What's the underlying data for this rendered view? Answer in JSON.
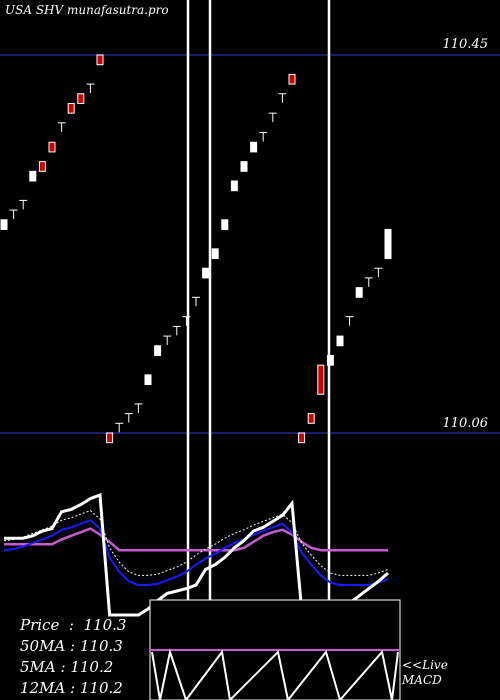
{
  "header": "USA SHV munafasutra.pro",
  "levels": {
    "upper": "110.45",
    "lower": "110.06"
  },
  "stats": [
    {
      "label": "Price",
      "value": "110.3"
    },
    {
      "label": "50MA",
      "value": "110.3"
    },
    {
      "label": "5MA",
      "value": "110.2"
    },
    {
      "label": "12MA",
      "value": "110.2"
    }
  ],
  "macd_labels": [
    "<<Live",
    "MACD"
  ],
  "colors": {
    "background": "#000000",
    "up": "#ffffff",
    "down": "#cc0000",
    "level_line": "#1a1a6e",
    "ma_blue": "#1a1aff",
    "ma_violet": "#c45ccc",
    "macd": "#c45ccc"
  },
  "chart_data": {
    "type": "candlestick",
    "title": "USA SHV",
    "ylim": [
      110.0,
      110.5
    ],
    "reference_levels": [
      110.45,
      110.06
    ],
    "candles": [
      {
        "o": 110.27,
        "c": 110.28,
        "dir": "up"
      },
      {
        "o": 110.29,
        "c": 110.29,
        "dir": "up"
      },
      {
        "o": 110.3,
        "c": 110.3,
        "dir": "up"
      },
      {
        "o": 110.32,
        "c": 110.33,
        "dir": "up"
      },
      {
        "o": 110.34,
        "c": 110.33,
        "dir": "down"
      },
      {
        "o": 110.36,
        "c": 110.35,
        "dir": "down"
      },
      {
        "o": 110.38,
        "c": 110.38,
        "dir": "up"
      },
      {
        "o": 110.4,
        "c": 110.39,
        "dir": "down"
      },
      {
        "o": 110.41,
        "c": 110.4,
        "dir": "down"
      },
      {
        "o": 110.42,
        "c": 110.42,
        "dir": "up"
      },
      {
        "o": 110.45,
        "c": 110.44,
        "dir": "down"
      },
      {
        "o": 110.06,
        "c": 110.05,
        "dir": "down"
      },
      {
        "o": 110.07,
        "c": 110.07,
        "dir": "up"
      },
      {
        "o": 110.08,
        "c": 110.08,
        "dir": "up"
      },
      {
        "o": 110.09,
        "c": 110.09,
        "dir": "up"
      },
      {
        "o": 110.11,
        "c": 110.12,
        "dir": "up"
      },
      {
        "o": 110.14,
        "c": 110.15,
        "dir": "up"
      },
      {
        "o": 110.16,
        "c": 110.16,
        "dir": "up"
      },
      {
        "o": 110.17,
        "c": 110.17,
        "dir": "up"
      },
      {
        "o": 110.18,
        "c": 110.18,
        "dir": "up"
      },
      {
        "o": 110.2,
        "c": 110.2,
        "dir": "up"
      },
      {
        "o": 110.22,
        "c": 110.23,
        "dir": "up"
      },
      {
        "o": 110.24,
        "c": 110.25,
        "dir": "up"
      },
      {
        "o": 110.27,
        "c": 110.28,
        "dir": "up"
      },
      {
        "o": 110.31,
        "c": 110.32,
        "dir": "up"
      },
      {
        "o": 110.33,
        "c": 110.34,
        "dir": "up"
      },
      {
        "o": 110.35,
        "c": 110.36,
        "dir": "up"
      },
      {
        "o": 110.37,
        "c": 110.37,
        "dir": "up"
      },
      {
        "o": 110.39,
        "c": 110.39,
        "dir": "up"
      },
      {
        "o": 110.41,
        "c": 110.41,
        "dir": "up"
      },
      {
        "o": 110.43,
        "c": 110.42,
        "dir": "down"
      },
      {
        "o": 110.06,
        "c": 110.05,
        "dir": "down"
      },
      {
        "o": 110.08,
        "c": 110.07,
        "dir": "down"
      },
      {
        "o": 110.13,
        "c": 110.1,
        "dir": "down"
      },
      {
        "o": 110.13,
        "c": 110.14,
        "dir": "up"
      },
      {
        "o": 110.15,
        "c": 110.16,
        "dir": "up"
      },
      {
        "o": 110.18,
        "c": 110.18,
        "dir": "up"
      },
      {
        "o": 110.2,
        "c": 110.21,
        "dir": "up"
      },
      {
        "o": 110.22,
        "c": 110.22,
        "dir": "up"
      },
      {
        "o": 110.23,
        "c": 110.23,
        "dir": "up"
      },
      {
        "o": 110.24,
        "c": 110.27,
        "dir": "up"
      }
    ],
    "lower_panel_lines": {
      "white": [
        0.64,
        0.64,
        0.64,
        0.66,
        0.7,
        0.72,
        0.86,
        0.88,
        0.92,
        0.97,
        1.0,
        0.0,
        0.0,
        0.0,
        0.0,
        0.05,
        0.12,
        0.18,
        0.2,
        0.22,
        0.25,
        0.38,
        0.42,
        0.48,
        0.56,
        0.62,
        0.7,
        0.73,
        0.78,
        0.83,
        0.93,
        0.05,
        0.0,
        0.0,
        0.0,
        0.05,
        0.1,
        0.16,
        0.22,
        0.28,
        0.35
      ],
      "blue": [
        0.54,
        0.55,
        0.57,
        0.6,
        0.63,
        0.66,
        0.71,
        0.73,
        0.76,
        0.79,
        0.72,
        0.48,
        0.36,
        0.28,
        0.25,
        0.25,
        0.26,
        0.29,
        0.32,
        0.36,
        0.42,
        0.47,
        0.51,
        0.56,
        0.6,
        0.63,
        0.67,
        0.7,
        0.73,
        0.76,
        0.69,
        0.52,
        0.42,
        0.33,
        0.27,
        0.25,
        0.25,
        0.25,
        0.25,
        0.27,
        0.3
      ],
      "violet": [
        0.59,
        0.59,
        0.59,
        0.59,
        0.59,
        0.59,
        0.63,
        0.66,
        0.69,
        0.72,
        0.67,
        0.61,
        0.54,
        0.54,
        0.54,
        0.54,
        0.54,
        0.54,
        0.54,
        0.54,
        0.54,
        0.54,
        0.54,
        0.54,
        0.54,
        0.56,
        0.61,
        0.66,
        0.69,
        0.71,
        0.67,
        0.61,
        0.56,
        0.54,
        0.54,
        0.54,
        0.54,
        0.54,
        0.54,
        0.54,
        0.54
      ]
    }
  }
}
